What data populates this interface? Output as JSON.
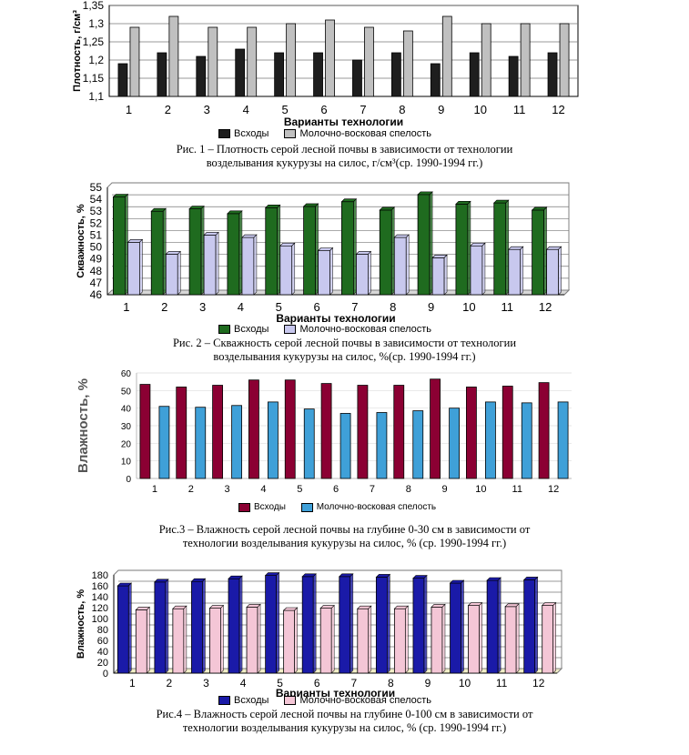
{
  "chart_data": [
    {
      "type": "bar",
      "ylabel": "Плотность, г/см³",
      "xlabel": "Варианты технологии",
      "ylim": [
        1.1,
        1.35
      ],
      "yticks": [
        "1,1",
        "1,15",
        "1,2",
        "1,25",
        "1,3",
        "1,35"
      ],
      "categories": [
        "1",
        "2",
        "3",
        "4",
        "5",
        "6",
        "7",
        "8",
        "9",
        "10",
        "11",
        "12"
      ],
      "series": [
        {
          "name": "Всходы",
          "color": "#1e1e1e",
          "values": [
            1.19,
            1.22,
            1.21,
            1.23,
            1.22,
            1.22,
            1.2,
            1.22,
            1.19,
            1.22,
            1.21,
            1.22
          ]
        },
        {
          "name": "Молочно-восковая спелость",
          "color": "#c0c0c0",
          "values": [
            1.29,
            1.32,
            1.29,
            1.29,
            1.3,
            1.31,
            1.29,
            1.28,
            1.32,
            1.3,
            1.3,
            1.3
          ]
        }
      ],
      "caption_line1": "Рис. 1 – Плотность серой лесной почвы в зависимости от технологии",
      "caption_line2": "возделывания кукурузы на силос, г/см³(ср. 1990-1994 гг.)"
    },
    {
      "type": "bar",
      "ylabel": "Скважность, %",
      "xlabel": "Варианты технологии",
      "ylim": [
        46,
        55
      ],
      "yticks": [
        "46",
        "47",
        "48",
        "49",
        "50",
        "51",
        "52",
        "53",
        "54",
        "55"
      ],
      "categories": [
        "1",
        "2",
        "3",
        "4",
        "5",
        "6",
        "7",
        "8",
        "9",
        "10",
        "11",
        "12"
      ],
      "series": [
        {
          "name": "Всходы",
          "color": "#1f6b1f",
          "values": [
            54.2,
            53.0,
            53.2,
            52.8,
            53.3,
            53.4,
            53.8,
            53.1,
            54.4,
            53.6,
            53.7,
            53.1
          ]
        },
        {
          "name": "Молочно-восковая спелость",
          "color": "#c8c8ee",
          "values": [
            50.4,
            49.4,
            51.0,
            50.8,
            50.1,
            49.7,
            49.4,
            50.8,
            49.1,
            50.1,
            49.8,
            49.8
          ]
        }
      ],
      "caption_line1": "Рис. 2 – Скважность серой лесной почвы в зависимости от технологии",
      "caption_line2": "возделывания кукурузы на силос, %(ср. 1990-1994 гг.)"
    },
    {
      "type": "bar",
      "ylabel": "Влажность, %",
      "xlabel": "",
      "ylim": [
        0,
        60
      ],
      "yticks": [
        "0",
        "10",
        "20",
        "30",
        "40",
        "50",
        "60"
      ],
      "categories": [
        "1",
        "2",
        "3",
        "4",
        "5",
        "6",
        "7",
        "8",
        "9",
        "10",
        "11",
        "12"
      ],
      "series": [
        {
          "name": "Всходы",
          "color": "#8b0033",
          "values": [
            53.5,
            52.0,
            53.0,
            56.0,
            56.0,
            54.0,
            53.0,
            53.0,
            56.5,
            52.0,
            52.5,
            54.5
          ]
        },
        {
          "name": "Молочно-восковая спелость",
          "color": "#3fa0d8",
          "values": [
            41.0,
            40.5,
            41.5,
            43.5,
            39.5,
            37.0,
            37.5,
            38.5,
            40.0,
            43.5,
            43.0,
            43.5
          ]
        }
      ],
      "caption_line1": "Рис.3 – Влажность серой лесной почвы на глубине 0-30 см в зависимости от",
      "caption_line2": "технологии возделывания кукурузы на силос, % (ср. 1990-1994 гг.)"
    },
    {
      "type": "bar",
      "ylabel": "Влажность, %",
      "xlabel": "Варианты технологии",
      "ylim": [
        0,
        180
      ],
      "yticks": [
        "0",
        "20",
        "40",
        "60",
        "80",
        "100",
        "120",
        "140",
        "160",
        "180"
      ],
      "categories": [
        "1",
        "2",
        "3",
        "4",
        "5",
        "6",
        "7",
        "8",
        "9",
        "10",
        "11",
        "12"
      ],
      "series": [
        {
          "name": "Всходы",
          "color": "#1a1aa8",
          "values": [
            160,
            167,
            168,
            173,
            179,
            177,
            177,
            176,
            174,
            165,
            170,
            171
          ]
        },
        {
          "name": "Молочно-восковая спелость",
          "color": "#f4c6d6",
          "values": [
            116,
            118,
            119,
            121,
            115,
            119,
            118,
            118,
            121,
            124,
            122,
            124
          ]
        }
      ],
      "caption_line1": "Рис.4 – Влажность серой лесной почвы на глубине 0-100 см в зависимости от",
      "caption_line2": "технологии возделывания кукурузы на силос, % (ср. 1990-1994 гг.)"
    }
  ]
}
